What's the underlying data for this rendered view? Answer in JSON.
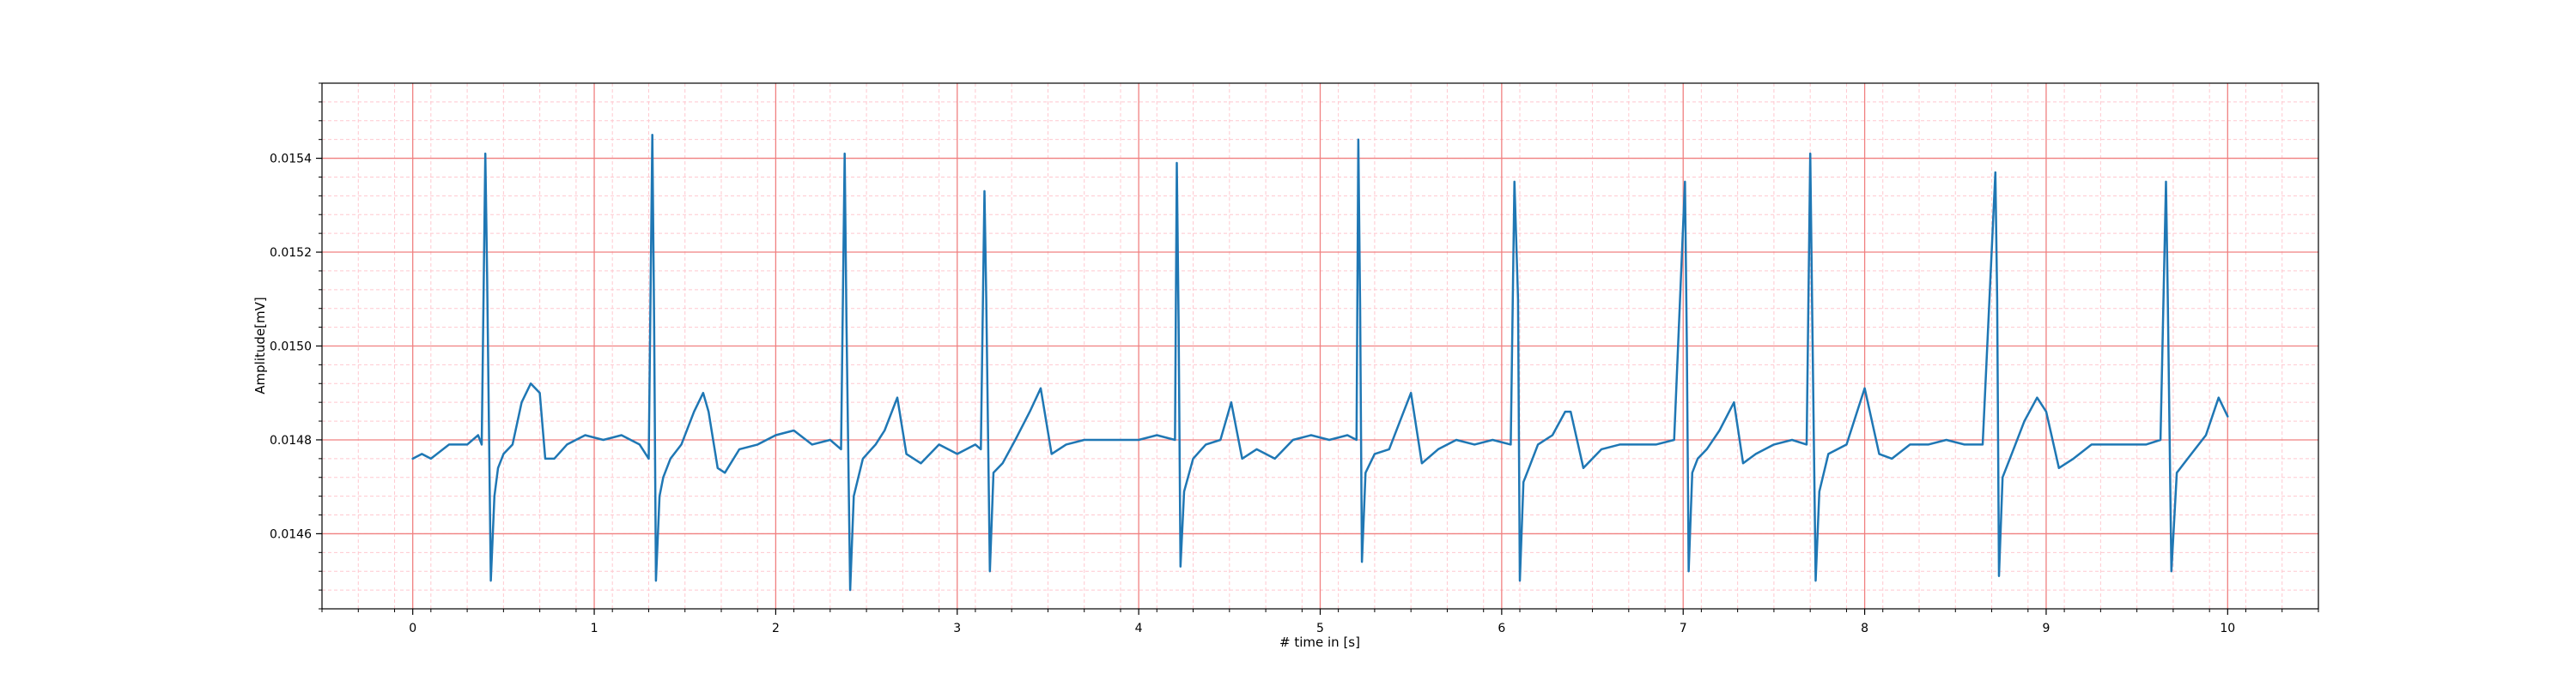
{
  "chart_data": {
    "type": "line",
    "title": "",
    "xlabel": "# time in [s]",
    "ylabel": "Amplitude[mV]",
    "xlim": [
      -0.5,
      10.5
    ],
    "ylim": [
      0.01444,
      0.01556
    ],
    "xticks": [
      0,
      1,
      2,
      3,
      4,
      5,
      6,
      7,
      8,
      9,
      10
    ],
    "xtick_labels": [
      "0",
      "1",
      "2",
      "3",
      "4",
      "5",
      "6",
      "7",
      "8",
      "9",
      "10"
    ],
    "yticks": [
      0.0146,
      0.0148,
      0.015,
      0.0152,
      0.0154
    ],
    "ytick_labels": [
      "0.0146",
      "0.0148",
      "0.0150",
      "0.0152",
      "0.0154"
    ],
    "grid": "major red, minor light pink",
    "legend": "none",
    "colors": {
      "line": "#1f77b4",
      "major_grid": "#f08080",
      "minor_grid": "#ffc8cf"
    },
    "series": [
      {
        "x": [
          0,
          0.05,
          0.1,
          0.2,
          0.3,
          0.36,
          0.38,
          0.4,
          0.41,
          0.43,
          0.45,
          0.47,
          0.5,
          0.55,
          0.6,
          0.65,
          0.7,
          0.73,
          0.78,
          0.85,
          0.95,
          1.05,
          1.15,
          1.25,
          1.3,
          1.32,
          1.33,
          1.34,
          1.36,
          1.38,
          1.42,
          1.48,
          1.55,
          1.6,
          1.63,
          1.68,
          1.72,
          1.8,
          1.9,
          2.0,
          2.1,
          2.2,
          2.3,
          2.36,
          2.38,
          2.39,
          2.41,
          2.43,
          2.48,
          2.55,
          2.6,
          2.67,
          2.72,
          2.8,
          2.9,
          3.0,
          3.1,
          3.13,
          3.15,
          3.16,
          3.18,
          3.2,
          3.25,
          3.32,
          3.4,
          3.46,
          3.52,
          3.6,
          3.7,
          3.8,
          3.9,
          4.0,
          4.1,
          4.2,
          4.21,
          4.22,
          4.23,
          4.25,
          4.3,
          4.37,
          4.45,
          4.51,
          4.57,
          4.65,
          4.75,
          4.85,
          4.95,
          5.05,
          5.15,
          5.2,
          5.21,
          5.22,
          5.23,
          5.25,
          5.3,
          5.38,
          5.45,
          5.5,
          5.56,
          5.65,
          5.75,
          5.85,
          5.95,
          6.05,
          6.07,
          6.09,
          6.1,
          6.12,
          6.15,
          6.2,
          6.28,
          6.35,
          6.38,
          6.45,
          6.55,
          6.65,
          6.75,
          6.85,
          6.95,
          7.01,
          7.02,
          7.03,
          7.05,
          7.08,
          7.13,
          7.2,
          7.28,
          7.33,
          7.4,
          7.5,
          7.6,
          7.68,
          7.7,
          7.71,
          7.73,
          7.75,
          7.8,
          7.9,
          7.95,
          8.0,
          8.08,
          8.15,
          8.25,
          8.35,
          8.45,
          8.55,
          8.65,
          8.72,
          8.73,
          8.74,
          8.76,
          8.8,
          8.88,
          8.95,
          9.0,
          9.07,
          9.15,
          9.25,
          9.35,
          9.45,
          9.55,
          9.63,
          9.66,
          9.67,
          9.69,
          9.72,
          9.8,
          9.88,
          9.95,
          10.0
        ],
        "y": [
          0.01476,
          0.01477,
          0.01476,
          0.01479,
          0.01479,
          0.01481,
          0.01479,
          0.01541,
          0.01515,
          0.0145,
          0.01468,
          0.01474,
          0.01477,
          0.01479,
          0.01488,
          0.01492,
          0.0149,
          0.01476,
          0.01476,
          0.01479,
          0.01481,
          0.0148,
          0.01481,
          0.01479,
          0.01476,
          0.01545,
          0.01505,
          0.0145,
          0.01468,
          0.01472,
          0.01476,
          0.01479,
          0.01486,
          0.0149,
          0.01486,
          0.01474,
          0.01473,
          0.01478,
          0.01479,
          0.01481,
          0.01482,
          0.01479,
          0.0148,
          0.01478,
          0.01541,
          0.01505,
          0.01448,
          0.01468,
          0.01476,
          0.01479,
          0.01482,
          0.01489,
          0.01477,
          0.01475,
          0.01479,
          0.01477,
          0.01479,
          0.01478,
          0.01533,
          0.0151,
          0.01452,
          0.01473,
          0.01475,
          0.0148,
          0.01486,
          0.01491,
          0.01477,
          0.01479,
          0.0148,
          0.0148,
          0.0148,
          0.0148,
          0.01481,
          0.0148,
          0.01539,
          0.01505,
          0.01453,
          0.01469,
          0.01476,
          0.01479,
          0.0148,
          0.01488,
          0.01476,
          0.01478,
          0.01476,
          0.0148,
          0.01481,
          0.0148,
          0.01481,
          0.0148,
          0.01544,
          0.01508,
          0.01454,
          0.01473,
          0.01477,
          0.01478,
          0.01485,
          0.0149,
          0.01475,
          0.01478,
          0.0148,
          0.01479,
          0.0148,
          0.01479,
          0.01535,
          0.0151,
          0.0145,
          0.01471,
          0.01474,
          0.01479,
          0.01481,
          0.01486,
          0.01486,
          0.01474,
          0.01478,
          0.01479,
          0.01479,
          0.01479,
          0.0148,
          0.01535,
          0.015,
          0.01452,
          0.01473,
          0.01476,
          0.01478,
          0.01482,
          0.01488,
          0.01475,
          0.01477,
          0.01479,
          0.0148,
          0.01479,
          0.01541,
          0.0151,
          0.0145,
          0.01469,
          0.01477,
          0.01479,
          0.01485,
          0.01491,
          0.01477,
          0.01476,
          0.01479,
          0.01479,
          0.0148,
          0.01479,
          0.01479,
          0.01537,
          0.0151,
          0.01451,
          0.01472,
          0.01476,
          0.01484,
          0.01489,
          0.01486,
          0.01474,
          0.01476,
          0.01479,
          0.01479,
          0.01479,
          0.01479,
          0.0148,
          0.01535,
          0.0151,
          0.01452,
          0.01473,
          0.01477,
          0.01481,
          0.01489,
          0.01485
        ]
      }
    ]
  }
}
